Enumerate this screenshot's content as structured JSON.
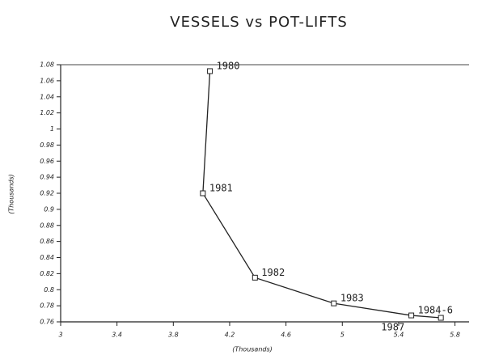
{
  "chart_data": {
    "type": "line",
    "title": "VESSELS vs POT-LIFTS",
    "x_label": "(Thousands)",
    "y_label": "(Thousands)",
    "x": [
      4.06,
      4.01,
      4.38,
      4.94,
      5.49,
      5.7
    ],
    "values": [
      1.072,
      0.92,
      0.815,
      0.783,
      0.768,
      0.765
    ],
    "point_labels": [
      "1980",
      "1981",
      "1982",
      "1983",
      "1984-6",
      "1987"
    ],
    "color": "#222222",
    "xlim": [
      3,
      5.9
    ],
    "xticks": [
      3,
      3.4,
      3.8,
      4.2,
      4.6,
      5,
      5.4,
      5.8
    ],
    "ylim": [
      0.76,
      1.08
    ],
    "yticks": [
      0.76,
      0.78,
      0.8,
      0.82,
      0.84,
      0.86,
      0.88,
      0.9,
      0.92,
      0.94,
      0.96,
      0.98,
      1,
      1.02,
      1.04,
      1.06,
      1.08
    ]
  }
}
